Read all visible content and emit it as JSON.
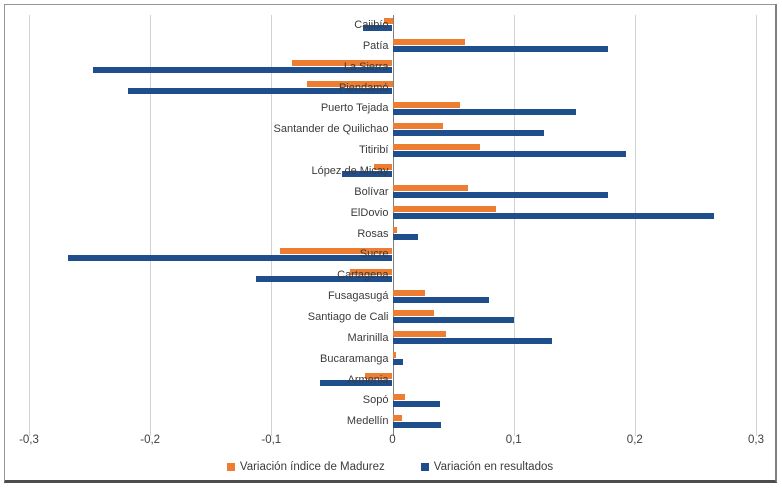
{
  "chart_data": {
    "type": "bar",
    "orientation": "horizontal",
    "categories": [
      "Cajibío",
      "Patía",
      "La Sierra",
      "Piendamó",
      "Puerto Tejada",
      "Santander de Quilichao",
      "Titiribí",
      "López de Micay",
      "Bolívar",
      "ElDovio",
      "Rosas",
      "Sucre",
      "Cartagena",
      "Fusagasugá",
      "Santiago de Cali",
      "Marinilla",
      "Bucaramanga",
      "Armenia",
      "Sopó",
      "Medellín"
    ],
    "series": [
      {
        "name": "Variación índice de Madurez",
        "color": "#ED7D31",
        "values": [
          -0.007,
          0.06,
          -0.083,
          -0.071,
          0.056,
          0.042,
          0.072,
          -0.015,
          0.062,
          0.085,
          0.004,
          -0.093,
          -0.035,
          0.027,
          0.034,
          0.044,
          0.003,
          -0.023,
          0.01,
          0.008
        ]
      },
      {
        "name": "Variación en resultados",
        "color": "#1F4E8C",
        "values": [
          -0.024,
          0.178,
          -0.247,
          -0.218,
          0.151,
          0.125,
          0.193,
          -0.042,
          0.178,
          0.265,
          0.021,
          -0.268,
          -0.113,
          0.08,
          0.1,
          0.132,
          0.009,
          -0.06,
          0.039,
          0.04
        ]
      }
    ],
    "xlim": [
      -0.3,
      0.3
    ],
    "x_ticks": [
      {
        "value": -0.3,
        "label": "-0,3"
      },
      {
        "value": -0.2,
        "label": "-0,2"
      },
      {
        "value": -0.1,
        "label": "-0,1"
      },
      {
        "value": 0,
        "label": "0"
      },
      {
        "value": 0.1,
        "label": "0,1"
      },
      {
        "value": 0.2,
        "label": "0,2"
      },
      {
        "value": 0.3,
        "label": "0,3"
      }
    ],
    "grid": true,
    "legend_position": "bottom",
    "colors": {
      "gridline": "#D2D2D2",
      "zero_axis": "#7F7F7F",
      "tick_label": "#404040",
      "category_label": "#3B3B3B",
      "legend_label": "#3B3B3B"
    }
  }
}
